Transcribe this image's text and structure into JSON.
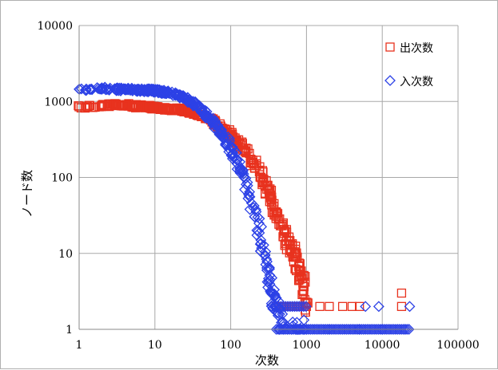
{
  "chart_data": {
    "type": "scatter",
    "title": "",
    "xlabel": "次数",
    "ylabel": "ノード数",
    "x_scale": "log",
    "y_scale": "log",
    "xlim": [
      1,
      100000
    ],
    "ylim": [
      1,
      10000
    ],
    "x_ticks": [
      "1",
      "10",
      "100",
      "1000",
      "10000",
      "100000"
    ],
    "y_ticks": [
      "1",
      "10",
      "100",
      "1000",
      "10000"
    ],
    "grid": true,
    "legend_position": "top-right",
    "series": [
      {
        "name": "出次数",
        "marker": "square",
        "color": "#e8321e",
        "points": [
          [
            1,
            850
          ],
          [
            2,
            880
          ],
          [
            3,
            920
          ],
          [
            4,
            900
          ],
          [
            5,
            880
          ],
          [
            6,
            860
          ],
          [
            7,
            870
          ],
          [
            8,
            850
          ],
          [
            9,
            840
          ],
          [
            10,
            830
          ],
          [
            12,
            820
          ],
          [
            15,
            800
          ],
          [
            20,
            780
          ],
          [
            25,
            760
          ],
          [
            30,
            720
          ],
          [
            40,
            660
          ],
          [
            50,
            600
          ],
          [
            60,
            540
          ],
          [
            80,
            430
          ],
          [
            100,
            360
          ],
          [
            120,
            300
          ],
          [
            150,
            230
          ],
          [
            200,
            150
          ],
          [
            250,
            100
          ],
          [
            300,
            70
          ],
          [
            350,
            50
          ],
          [
            400,
            35
          ],
          [
            500,
            20
          ],
          [
            600,
            13
          ],
          [
            700,
            9
          ],
          [
            800,
            6
          ],
          [
            900,
            4
          ],
          [
            1000,
            2
          ],
          [
            1500,
            2
          ],
          [
            2000,
            2
          ],
          [
            3000,
            2
          ],
          [
            4000,
            2
          ],
          [
            5000,
            2
          ],
          [
            18000,
            3
          ],
          [
            18000,
            2
          ]
        ]
      },
      {
        "name": "入次数",
        "marker": "diamond",
        "color": "#2c41e6",
        "points": [
          [
            1,
            1450
          ],
          [
            2,
            1480
          ],
          [
            3,
            1450
          ],
          [
            4,
            1440
          ],
          [
            5,
            1430
          ],
          [
            6,
            1420
          ],
          [
            7,
            1410
          ],
          [
            8,
            1400
          ],
          [
            9,
            1390
          ],
          [
            10,
            1380
          ],
          [
            12,
            1350
          ],
          [
            15,
            1300
          ],
          [
            20,
            1200
          ],
          [
            25,
            1100
          ],
          [
            30,
            980
          ],
          [
            40,
            800
          ],
          [
            50,
            640
          ],
          [
            60,
            520
          ],
          [
            80,
            360
          ],
          [
            100,
            250
          ],
          [
            120,
            170
          ],
          [
            150,
            100
          ],
          [
            200,
            40
          ],
          [
            250,
            15
          ],
          [
            300,
            6
          ],
          [
            350,
            3
          ],
          [
            400,
            2
          ],
          [
            500,
            1
          ],
          [
            1000,
            1
          ],
          [
            2000,
            1
          ],
          [
            5000,
            1
          ],
          [
            6000,
            2
          ],
          [
            9000,
            2
          ],
          [
            10000,
            1
          ],
          [
            20000,
            1
          ],
          [
            23000,
            2
          ]
        ]
      }
    ]
  }
}
